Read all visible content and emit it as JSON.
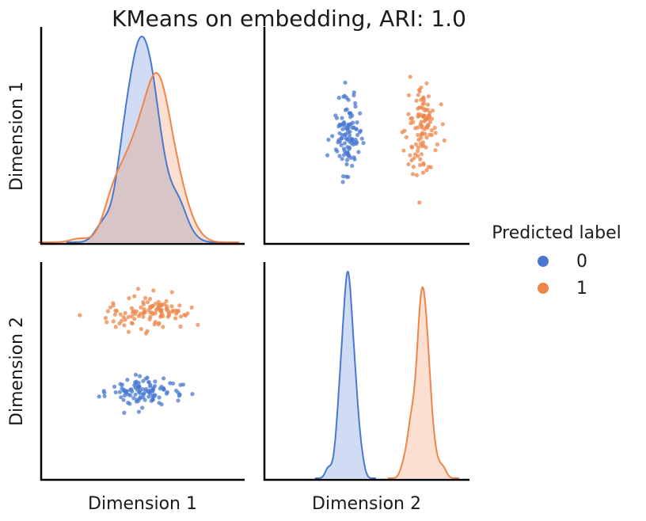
{
  "title": "KMeans on embedding, ARI: 1.0",
  "colors": {
    "0": "#4878d0",
    "1": "#ee854a",
    "axis": "#000000"
  },
  "legend": {
    "title": "Predicted label",
    "entries": [
      {
        "label": "0",
        "color": "#4878d0"
      },
      {
        "label": "1",
        "color": "#ee854a"
      }
    ]
  },
  "chart_data": {
    "type": "scatter",
    "subtype": "pairplot",
    "title": "KMeans on embedding, ARI: 1.0",
    "variables": [
      "Dimension 1",
      "Dimension 2"
    ],
    "hue": "Predicted label",
    "diagonal": "kde",
    "ticks": "none",
    "grid": false,
    "legend_position": "right",
    "xlim": {
      "Dimension 1": [
        -3.0,
        3.0
      ],
      "Dimension 2": [
        -1.0,
        11.0
      ]
    },
    "ylim": {
      "Dimension 1": [
        -3.0,
        3.0
      ],
      "Dimension 2": [
        -1.0,
        11.0
      ]
    },
    "series": [
      {
        "name": "0",
        "points": [
          [
            0.55,
            3.16
          ],
          [
            -0.46,
            4.51
          ],
          [
            0.3,
            3.67
          ],
          [
            0.18,
            4.38
          ],
          [
            -0.08,
            3.55
          ],
          [
            -0.12,
            4.34
          ],
          [
            0.25,
            3.35
          ],
          [
            0.3,
            3.41
          ],
          [
            -1.14,
            3.8
          ],
          [
            0.62,
            3.97
          ],
          [
            0.1,
            4.0
          ],
          [
            -0.57,
            3.92
          ],
          [
            -1.29,
            3.59
          ],
          [
            0.0,
            3.99
          ],
          [
            -1.15,
            3.9
          ],
          [
            -0.55,
            2.69
          ],
          [
            -0.1,
            4.13
          ],
          [
            0.48,
            3.54
          ],
          [
            0.72,
            3.83
          ],
          [
            -0.17,
            3.98
          ],
          [
            -0.49,
            3.89
          ],
          [
            -0.57,
            3.4
          ],
          [
            0.17,
            3.58
          ],
          [
            0.3,
            3.99
          ],
          [
            0.89,
            4.31
          ],
          [
            -0.39,
            3.19
          ],
          [
            -0.23,
            4.37
          ],
          [
            -0.08,
            3.95
          ],
          [
            -0.13,
            3.35
          ],
          [
            0.2,
            3.86
          ],
          [
            -0.84,
            4.13
          ],
          [
            0.01,
            3.55
          ],
          [
            -0.62,
            4.05
          ],
          [
            0.31,
            4.06
          ],
          [
            1.09,
            3.7
          ],
          [
            0.48,
            3.24
          ],
          [
            0.36,
            4.42
          ],
          [
            0.3,
            3.91
          ],
          [
            0.03,
            3.75
          ],
          [
            0.61,
            3.99
          ],
          [
            -0.66,
            4.28
          ],
          [
            -0.19,
            4.41
          ],
          [
            -0.02,
            2.97
          ],
          [
            1.19,
            4.25
          ],
          [
            1.04,
            3.37
          ],
          [
            -0.09,
            4.71
          ],
          [
            -0.22,
            3.7
          ],
          [
            0.01,
            3.71
          ],
          [
            -0.53,
            3.88
          ],
          [
            -0.22,
            4.09
          ],
          [
            0.17,
            3.84
          ],
          [
            -0.37,
            3.65
          ],
          [
            1.46,
            3.73
          ],
          [
            -0.12,
            2.75
          ],
          [
            0.98,
            3.92
          ],
          [
            0.21,
            4.16
          ],
          [
            0.7,
            3.75
          ],
          [
            0.61,
            4.05
          ],
          [
            0.35,
            4.17
          ],
          [
            -0.08,
            3.49
          ],
          [
            -0.54,
            3.65
          ],
          [
            1.11,
            4.23
          ],
          [
            -0.25,
            4.21
          ],
          [
            0.61,
            4.59
          ],
          [
            -0.68,
            3.84
          ],
          [
            -0.56,
            3.96
          ],
          [
            -0.61,
            4.24
          ],
          [
            0.29,
            3.55
          ],
          [
            -1.13,
            3.61
          ],
          [
            -0.19,
            3.31
          ],
          [
            -0.11,
            4.14
          ],
          [
            -0.27,
            3.5
          ],
          [
            0.55,
            4.13
          ],
          [
            -0.32,
            3.87
          ],
          [
            0.51,
            4.03
          ],
          [
            0.21,
            3.75
          ],
          [
            -0.44,
            3.25
          ],
          [
            -0.17,
            3.42
          ],
          [
            1.07,
            3.63
          ],
          [
            -0.43,
            3.7
          ],
          [
            -0.65,
            3.55
          ],
          [
            0.21,
            3.92
          ],
          [
            0.8,
            4.33
          ],
          [
            0.06,
            3.4
          ],
          [
            -0.19,
            4.27
          ],
          [
            -0.08,
            3.78
          ],
          [
            -0.49,
            3.78
          ],
          [
            -0.13,
            4.1
          ],
          [
            -0.8,
            3.82
          ],
          [
            0.36,
            3.67
          ],
          [
            0.27,
            3.9
          ],
          [
            1.04,
            3.81
          ],
          [
            -0.13,
            4.13
          ],
          [
            0.09,
            3.89
          ],
          [
            -0.48,
            3.86
          ],
          [
            -0.34,
            3.99
          ],
          [
            -0.38,
            3.95
          ],
          [
            0.17,
            4.38
          ],
          [
            -0.12,
            3.84
          ],
          [
            0.22,
            4.23
          ],
          [
            -0.21,
            4.79
          ],
          [
            0.34,
            3.62
          ],
          [
            0.29,
            3.43
          ],
          [
            0.09,
            4.58
          ],
          [
            0.01,
            4.45
          ],
          [
            0.13,
            4.63
          ]
        ]
      },
      {
        "name": "1",
        "points": [
          [
            1.62,
            7.54
          ],
          [
            -0.06,
            8.5
          ],
          [
            -1.03,
            8.29
          ],
          [
            -1.1,
            7.92
          ],
          [
            1.22,
            8.09
          ],
          [
            0.55,
            8.36
          ],
          [
            -0.87,
            8.61
          ],
          [
            0.34,
            7.57
          ],
          [
            1.12,
            8.0
          ],
          [
            -0.3,
            8.23
          ],
          [
            -0.14,
            9.53
          ],
          [
            0.28,
            8.59
          ],
          [
            -0.82,
            8.11
          ],
          [
            0.48,
            8.63
          ],
          [
            0.96,
            7.9
          ],
          [
            -0.31,
            7.62
          ],
          [
            -0.63,
            7.76
          ],
          [
            1.11,
            7.45
          ],
          [
            0.13,
            7.2
          ],
          [
            -0.77,
            8.31
          ],
          [
            0.63,
            8.68
          ],
          [
            -0.69,
            7.62
          ],
          [
            0.21,
            8.97
          ],
          [
            -0.55,
            7.52
          ],
          [
            1.44,
            8.5
          ],
          [
            0.01,
            7.98
          ],
          [
            0.29,
            8.57
          ],
          [
            0.44,
            8.41
          ],
          [
            0.23,
            8.48
          ],
          [
            -0.52,
            7.82
          ],
          [
            -0.19,
            8.28
          ],
          [
            0.37,
            7.7
          ],
          [
            0.02,
            8.17
          ],
          [
            0.2,
            7.84
          ],
          [
            -0.41,
            9.01
          ],
          [
            0.07,
            8.25
          ],
          [
            0.72,
            8.45
          ],
          [
            0.52,
            7.99
          ],
          [
            0.22,
            8.55
          ],
          [
            -0.33,
            8.01
          ],
          [
            0.01,
            8.79
          ],
          [
            0.39,
            8.37
          ],
          [
            -0.07,
            8.16
          ],
          [
            0.54,
            8.05
          ],
          [
            0.53,
            8.31
          ],
          [
            -0.25,
            9.12
          ],
          [
            -0.12,
            8.03
          ],
          [
            1.02,
            8.27
          ],
          [
            -0.23,
            8.14
          ],
          [
            0.22,
            7.98
          ],
          [
            0.98,
            8.16
          ],
          [
            0.04,
            8.4
          ],
          [
            -0.81,
            8.32
          ],
          [
            0.77,
            8.07
          ],
          [
            0.75,
            8.29
          ],
          [
            0.37,
            8.18
          ],
          [
            0.17,
            8.37
          ],
          [
            0.59,
            7.43
          ],
          [
            0.37,
            8.7
          ],
          [
            0.86,
            9.34
          ],
          [
            -0.43,
            7.97
          ],
          [
            0.14,
            8.79
          ],
          [
            -0.8,
            7.43
          ],
          [
            0.87,
            8.27
          ],
          [
            0.46,
            8.55
          ],
          [
            -0.33,
            8.45
          ],
          [
            0.59,
            8.02
          ],
          [
            0.48,
            7.64
          ],
          [
            0.45,
            8.48
          ],
          [
            0.52,
            8.29
          ],
          [
            0.55,
            8.61
          ],
          [
            0.49,
            8.49
          ],
          [
            -0.25,
            7.87
          ],
          [
            0.02,
            8.67
          ],
          [
            -0.27,
            8.3
          ],
          [
            1.26,
            8.06
          ],
          [
            0.22,
            8.22
          ],
          [
            0.85,
            8.56
          ],
          [
            0.69,
            8.85
          ],
          [
            -0.96,
            8.5
          ],
          [
            1.08,
            8.61
          ],
          [
            -1.07,
            7.69
          ],
          [
            0.27,
            8.21
          ],
          [
            0.54,
            8.66
          ],
          [
            0.3,
            8.14
          ],
          [
            0.98,
            8.33
          ],
          [
            0.54,
            8.32
          ],
          [
            -0.88,
            8.74
          ],
          [
            0.31,
            9.44
          ],
          [
            -1.86,
            8.07
          ],
          [
            -0.42,
            7.15
          ],
          [
            0.46,
            8.8
          ],
          [
            0.03,
            8.24
          ],
          [
            0.7,
            8.57
          ],
          [
            0.89,
            8.33
          ],
          [
            1.32,
            8.17
          ],
          [
            -0.33,
            7.64
          ],
          [
            0.69,
            8.39
          ],
          [
            -0.87,
            7.73
          ],
          [
            -0.57,
            7.97
          ],
          [
            0.56,
            8.18
          ],
          [
            -0.52,
            8.19
          ],
          [
            0.77,
            8.17
          ],
          [
            1.05,
            8.31
          ],
          [
            -0.05,
            7.31
          ],
          [
            -0.66,
            8.12
          ],
          [
            0.09,
            7.07
          ],
          [
            0.74,
            7.98
          ],
          [
            0.07,
            9.02
          ],
          [
            0.46,
            7.57
          ]
        ]
      }
    ]
  }
}
